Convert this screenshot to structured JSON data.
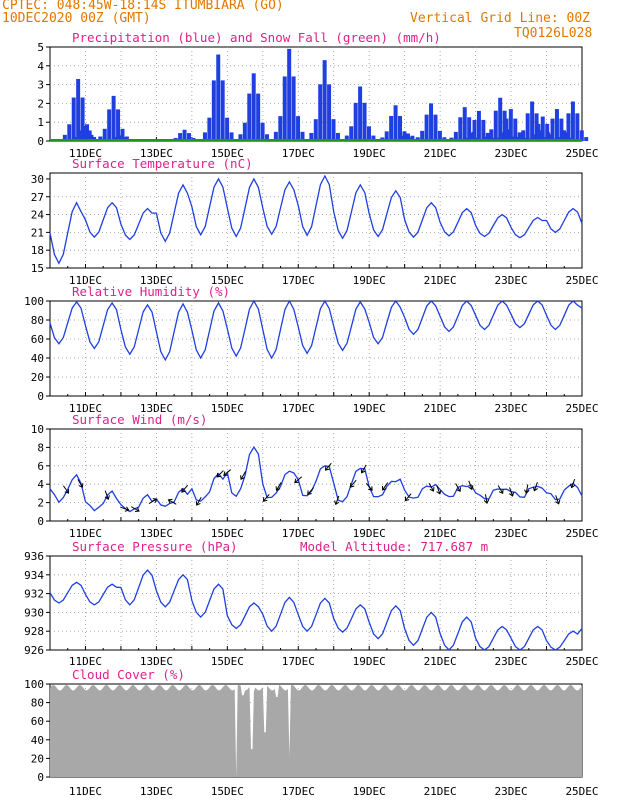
{
  "header": {
    "line1": "CPTEC:  048:45W-18:14S  ITUMBIARA (GO)",
    "line2": "10DEC2020 00Z (GMT)",
    "grid_note": "Vertical Grid Line: 00Z",
    "code": "TQ0126L028"
  },
  "colors": {
    "header": "#e07800",
    "title": "#e0208c",
    "series": "#1f3fe0",
    "snow": "#1a9a1a",
    "cloud": "#a8a8a8",
    "grid": "#999999"
  },
  "day_labels": [
    "11DEC",
    "13DEC",
    "15DEC",
    "17DEC",
    "19DEC",
    "21DEC",
    "23DEC",
    "25DEC"
  ],
  "chart_data": [
    {
      "type": "bar",
      "title": "Precipitation (blue) and Snow Fall (green) (mm/h)",
      "x": {
        "start": "10DEC2020 00Z",
        "end": "25DEC2020 00Z",
        "step_hours": 3
      },
      "ylim": [
        0,
        5
      ],
      "yticks": [
        0,
        1,
        2,
        3,
        4,
        5
      ],
      "series": [
        {
          "name": "Precipitation",
          "color": "#1f3fe0",
          "events": [
            {
              "day": 10.8,
              "peak": 3.3
            },
            {
              "day": 11.0,
              "peak": 0.8
            },
            {
              "day": 11.8,
              "peak": 2.4
            },
            {
              "day": 12.0,
              "peak": 0.3
            },
            {
              "day": 13.8,
              "peak": 0.6
            },
            {
              "day": 14.75,
              "peak": 4.6
            },
            {
              "day": 15.75,
              "peak": 3.6
            },
            {
              "day": 16.75,
              "peak": 4.9
            },
            {
              "day": 17.75,
              "peak": 4.3
            },
            {
              "day": 18.75,
              "peak": 2.9
            },
            {
              "day": 19.75,
              "peak": 1.9
            },
            {
              "day": 20.1,
              "peak": 0.4
            },
            {
              "day": 20.75,
              "peak": 2.0
            },
            {
              "day": 21.7,
              "peak": 1.8
            },
            {
              "day": 22.1,
              "peak": 1.6
            },
            {
              "day": 22.7,
              "peak": 2.3
            },
            {
              "day": 23.0,
              "peak": 1.7
            },
            {
              "day": 23.6,
              "peak": 2.1
            },
            {
              "day": 23.9,
              "peak": 1.3
            },
            {
              "day": 24.3,
              "peak": 1.7
            },
            {
              "day": 24.75,
              "peak": 2.1
            }
          ]
        },
        {
          "name": "Snow Fall",
          "color": "#1a9a1a",
          "values": "0"
        }
      ]
    },
    {
      "type": "line",
      "title": "Surface Temperature (nC)",
      "ylim": [
        15,
        31
      ],
      "yticks": [
        15,
        18,
        21,
        24,
        27,
        30
      ],
      "daily": [
        {
          "max": 26,
          "min": 15.8
        },
        {
          "max": 26,
          "min": 20.2
        },
        {
          "max": 25,
          "min": 19.8
        },
        {
          "max": 29,
          "min": 19.5
        },
        {
          "max": 30,
          "min": 20.6
        },
        {
          "max": 30,
          "min": 20.3
        },
        {
          "max": 29.5,
          "min": 20.7
        },
        {
          "max": 30.5,
          "min": 20.5
        },
        {
          "max": 29,
          "min": 20.0
        },
        {
          "max": 28,
          "min": 20.3
        },
        {
          "max": 26,
          "min": 20.2
        },
        {
          "max": 25,
          "min": 20.4
        },
        {
          "max": 24,
          "min": 20.3
        },
        {
          "max": 23.5,
          "min": 20.1
        },
        {
          "max": 25,
          "min": 21.0
        },
        {
          "max": 23
        }
      ]
    },
    {
      "type": "line",
      "title": "Relative Humidity (%)",
      "ylim": [
        0,
        100
      ],
      "yticks": [
        0,
        20,
        40,
        60,
        80,
        100
      ],
      "daily": [
        {
          "max": 99,
          "min": 55
        },
        {
          "max": 98,
          "min": 50
        },
        {
          "max": 96,
          "min": 44
        },
        {
          "max": 97,
          "min": 38
        },
        {
          "max": 98,
          "min": 40
        },
        {
          "max": 100,
          "min": 42
        },
        {
          "max": 100,
          "min": 40
        },
        {
          "max": 100,
          "min": 45
        },
        {
          "max": 99,
          "min": 48
        },
        {
          "max": 100,
          "min": 55
        },
        {
          "max": 100,
          "min": 65
        },
        {
          "max": 100,
          "min": 68
        },
        {
          "max": 100,
          "min": 70
        },
        {
          "max": 100,
          "min": 72
        },
        {
          "max": 100,
          "min": 70
        },
        {
          "max": 93
        }
      ]
    },
    {
      "type": "line",
      "title": "Surface Wind (m/s)",
      "ylim": [
        0,
        10
      ],
      "yticks": [
        0,
        2,
        4,
        6,
        8,
        10
      ],
      "daily": [
        {
          "max": 4.8,
          "min": 2.2
        },
        {
          "max": 3.0,
          "min": 1.2
        },
        {
          "max": 2.6,
          "min": 1.0
        },
        {
          "max": 3.3,
          "min": 1.5
        },
        {
          "max": 5.0,
          "min": 2.0
        },
        {
          "max": 8.0,
          "min": 2.5
        },
        {
          "max": 5.5,
          "min": 2.4
        },
        {
          "max": 6.2,
          "min": 2.6
        },
        {
          "max": 6.0,
          "min": 2.0
        },
        {
          "max": 4.6,
          "min": 2.6
        },
        {
          "max": 4.0,
          "min": 2.5
        },
        {
          "max": 4.0,
          "min": 2.7
        },
        {
          "max": 3.6,
          "min": 2.5
        },
        {
          "max": 3.8,
          "min": 2.7
        },
        {
          "max": 4.0,
          "min": 2.4
        },
        {
          "max": 3.4
        }
      ],
      "wind_arrows": [
        {
          "day": 10.45,
          "deg": 145
        },
        {
          "day": 10.85,
          "deg": 150
        },
        {
          "day": 11.6,
          "deg": 160
        },
        {
          "day": 12.1,
          "deg": 110
        },
        {
          "day": 12.4,
          "deg": 120
        },
        {
          "day": 12.9,
          "deg": 60
        },
        {
          "day": 13.45,
          "deg": 300
        },
        {
          "day": 13.8,
          "deg": 220
        },
        {
          "day": 14.2,
          "deg": 210
        },
        {
          "day": 14.8,
          "deg": 225
        },
        {
          "day": 15.0,
          "deg": 230
        },
        {
          "day": 15.45,
          "deg": 210
        },
        {
          "day": 16.1,
          "deg": 220
        },
        {
          "day": 16.45,
          "deg": 210
        },
        {
          "day": 17.0,
          "deg": 230
        },
        {
          "day": 17.35,
          "deg": 220
        },
        {
          "day": 17.85,
          "deg": 220
        },
        {
          "day": 18.1,
          "deg": 200
        },
        {
          "day": 18.55,
          "deg": 220
        },
        {
          "day": 18.85,
          "deg": 210
        },
        {
          "day": 19.0,
          "deg": 140
        },
        {
          "day": 19.45,
          "deg": 215
        },
        {
          "day": 20.1,
          "deg": 220
        },
        {
          "day": 20.75,
          "deg": 150
        },
        {
          "day": 20.95,
          "deg": 160
        },
        {
          "day": 21.5,
          "deg": 150
        },
        {
          "day": 21.85,
          "deg": 160
        },
        {
          "day": 22.3,
          "deg": 170
        },
        {
          "day": 22.7,
          "deg": 150
        },
        {
          "day": 23.0,
          "deg": 160
        },
        {
          "day": 23.45,
          "deg": 190
        },
        {
          "day": 23.7,
          "deg": 200
        },
        {
          "day": 24.3,
          "deg": 160
        },
        {
          "day": 24.75,
          "deg": 200
        }
      ]
    },
    {
      "type": "line",
      "title": "Surface Pressure (hPa)",
      "annotation": "Model Altitude: 717.687 m",
      "ylim": [
        926,
        936
      ],
      "yticks": [
        926,
        928,
        930,
        932,
        934,
        936
      ],
      "daily": [
        {
          "max": 933.2,
          "min": 931.0
        },
        {
          "max": 933.0,
          "min": 930.8
        },
        {
          "max": 934.5,
          "min": 930.8
        },
        {
          "max": 934.0,
          "min": 930.6
        },
        {
          "max": 933.0,
          "min": 929.5
        },
        {
          "max": 931.0,
          "min": 928.3
        },
        {
          "max": 931.6,
          "min": 928.0
        },
        {
          "max": 931.5,
          "min": 928.0
        },
        {
          "max": 930.8,
          "min": 927.9
        },
        {
          "max": 930.7,
          "min": 927.2
        },
        {
          "max": 930.0,
          "min": 926.5
        },
        {
          "max": 929.5,
          "min": 926.0
        },
        {
          "max": 928.5,
          "min": 926.0
        },
        {
          "max": 928.5,
          "min": 926.0
        },
        {
          "max": 928.0,
          "min": 926.0
        },
        {
          "max": 928.8
        }
      ]
    },
    {
      "type": "area",
      "title": "Cloud Cover (%)",
      "ylim": [
        0,
        100
      ],
      "yticks": [
        0,
        20,
        40,
        60,
        80,
        100
      ],
      "baseline": 96,
      "dips": [
        {
          "day": 15.25,
          "value": 0
        },
        {
          "day": 15.45,
          "value": 88
        },
        {
          "day": 15.7,
          "value": 30
        },
        {
          "day": 15.75,
          "value": 92
        },
        {
          "day": 16.05,
          "value": 48
        },
        {
          "day": 16.4,
          "value": 86
        },
        {
          "day": 16.75,
          "value": 22
        }
      ]
    }
  ]
}
